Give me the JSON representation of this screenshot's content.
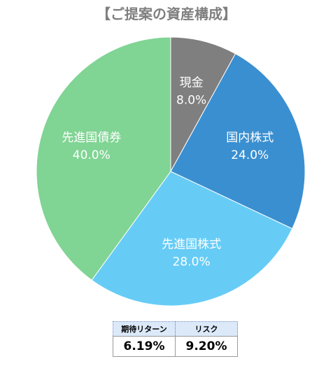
{
  "chart_data": {
    "type": "pie",
    "title": "【ご提案の資産構成】",
    "slices": [
      {
        "label": "現金",
        "value": 8.0,
        "value_label": "8.0%",
        "color": "#7f7f7f"
      },
      {
        "label": "国内株式",
        "value": 24.0,
        "value_label": "24.0%",
        "color": "#3a8fd0"
      },
      {
        "label": "先進国株式",
        "value": 28.0,
        "value_label": "28.0%",
        "color": "#66ccf6"
      },
      {
        "label": "先進国債券",
        "value": 40.0,
        "value_label": "40.0%",
        "color": "#80d494"
      }
    ],
    "start_angle": "12 o'clock",
    "direction": "clockwise"
  },
  "metrics": {
    "headers": [
      "期待リターン",
      "リスク"
    ],
    "values": [
      "6.19%",
      "9.20%"
    ]
  }
}
